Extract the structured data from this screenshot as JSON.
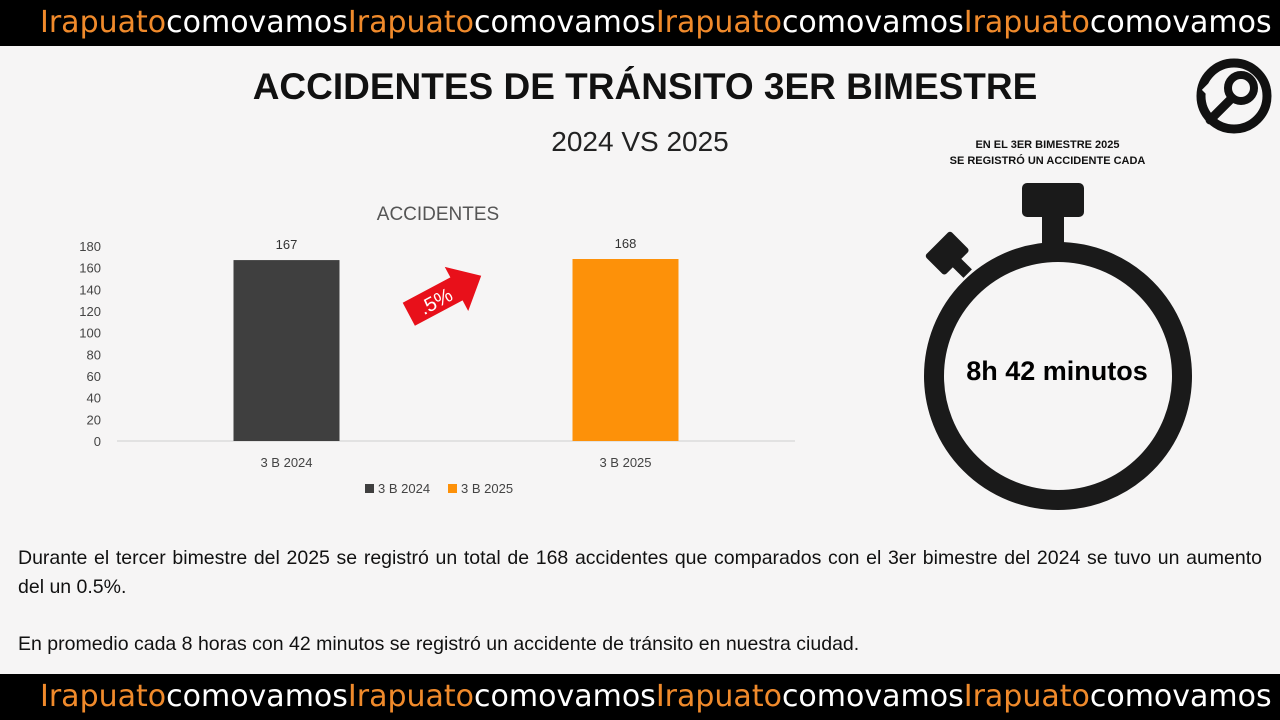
{
  "banner": {
    "segments": [
      {
        "text": "Irapuato",
        "color": "#f08a2b"
      },
      {
        "text": "comovamos",
        "color": "#ffffff"
      },
      {
        "text": "Irapuato",
        "color": "#f08a2b"
      },
      {
        "text": "comovamos",
        "color": "#ffffff"
      },
      {
        "text": "Irapuato",
        "color": "#f08a2b"
      },
      {
        "text": "comovamos",
        "color": "#ffffff"
      },
      {
        "text": "Irapuato",
        "color": "#f08a2b"
      },
      {
        "text": "comovamos",
        "color": "#ffffff"
      }
    ]
  },
  "header": {
    "title": "ACCIDENTES DE TRÁNSITO 3ER BIMESTRE",
    "subtitle": "2024 VS 2025"
  },
  "logo": {
    "icon": "irapuato-como-vamos-logo"
  },
  "stopwatch": {
    "caption_line1": "EN EL 3ER BIMESTRE 2025",
    "caption_line2": "SE REGISTRÓ UN ACCIDENTE CADA",
    "value": "8h 42 minutos",
    "icon": "stopwatch-icon"
  },
  "chart_data": {
    "type": "bar",
    "title": "ACCIDENTES",
    "categories": [
      "3 B 2024",
      "3 B 2025"
    ],
    "series": [
      {
        "name": "3 B 2024",
        "values": [
          167,
          null
        ],
        "color": "#3f3f3f"
      },
      {
        "name": "3 B 2025",
        "values": [
          null,
          168
        ],
        "color": "#fd9109"
      }
    ],
    "data_labels": [
      "167",
      "168"
    ],
    "ylim": [
      0,
      180
    ],
    "yticks": [
      0,
      20,
      40,
      60,
      80,
      100,
      120,
      140,
      160,
      180
    ],
    "legend": "bottom",
    "grid": false,
    "annotation": {
      "text": ".5%",
      "color": "#e8101a",
      "icon": "up-right-arrow-icon"
    }
  },
  "paragraphs": [
    "Durante el tercer bimestre del 2025 se registró un total de 168 accidentes que comparados con el 3er bimestre del 2024 se tuvo un aumento del un 0.5%.",
    "En promedio cada 8 horas con 42 minutos se registró un accidente de tránsito en nuestra ciudad."
  ]
}
